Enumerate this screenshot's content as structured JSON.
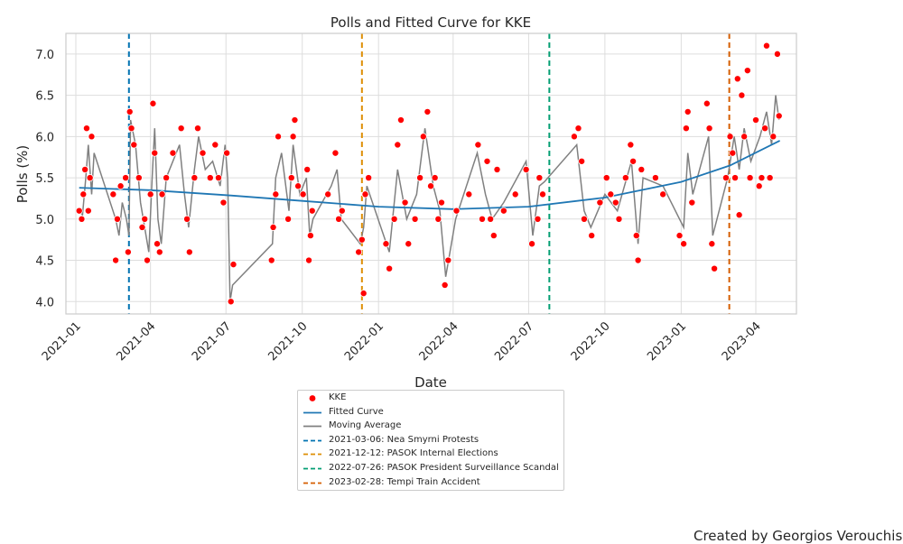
{
  "chart_data": {
    "type": "scatter",
    "title": "Polls and Fitted Curve for KKE",
    "xlabel": "Date",
    "ylabel": "Polls (%)",
    "x_range": [
      "2020-12-20",
      "2023-05-20"
    ],
    "ylim": [
      3.85,
      7.25
    ],
    "x_ticks": [
      "2021-01",
      "2021-04",
      "2021-07",
      "2021-10",
      "2022-01",
      "2022-04",
      "2022-07",
      "2022-10",
      "2023-01",
      "2023-04"
    ],
    "y_ticks": [
      4.0,
      4.5,
      5.0,
      5.5,
      6.0,
      6.5,
      7.0
    ],
    "grid": true,
    "legend_position": "below",
    "series": [
      {
        "name": "KKE",
        "style": "points",
        "color": "#ff0000",
        "points": [
          [
            "2021-01-05",
            5.1
          ],
          [
            "2021-01-08",
            5.0
          ],
          [
            "2021-01-10",
            5.3
          ],
          [
            "2021-01-12",
            5.6
          ],
          [
            "2021-01-14",
            6.1
          ],
          [
            "2021-01-16",
            5.1
          ],
          [
            "2021-01-18",
            5.5
          ],
          [
            "2021-01-20",
            6.0
          ],
          [
            "2021-02-15",
            5.3
          ],
          [
            "2021-02-18",
            4.5
          ],
          [
            "2021-02-20",
            5.0
          ],
          [
            "2021-02-24",
            5.4
          ],
          [
            "2021-03-02",
            5.5
          ],
          [
            "2021-03-05",
            4.6
          ],
          [
            "2021-03-07",
            6.3
          ],
          [
            "2021-03-09",
            6.1
          ],
          [
            "2021-03-12",
            5.9
          ],
          [
            "2021-03-18",
            5.5
          ],
          [
            "2021-03-22",
            4.9
          ],
          [
            "2021-03-25",
            5.0
          ],
          [
            "2021-03-28",
            4.5
          ],
          [
            "2021-04-01",
            5.3
          ],
          [
            "2021-04-04",
            6.4
          ],
          [
            "2021-04-06",
            5.8
          ],
          [
            "2021-04-09",
            4.7
          ],
          [
            "2021-04-12",
            4.6
          ],
          [
            "2021-04-15",
            5.3
          ],
          [
            "2021-04-20",
            5.5
          ],
          [
            "2021-04-28",
            5.8
          ],
          [
            "2021-05-08",
            6.1
          ],
          [
            "2021-05-15",
            5.0
          ],
          [
            "2021-05-18",
            4.6
          ],
          [
            "2021-05-24",
            5.5
          ],
          [
            "2021-05-28",
            6.1
          ],
          [
            "2021-06-03",
            5.8
          ],
          [
            "2021-06-12",
            5.5
          ],
          [
            "2021-06-18",
            5.9
          ],
          [
            "2021-06-22",
            5.5
          ],
          [
            "2021-06-28",
            5.2
          ],
          [
            "2021-07-02",
            5.8
          ],
          [
            "2021-07-07",
            4.0
          ],
          [
            "2021-07-10",
            4.45
          ],
          [
            "2021-08-25",
            4.5
          ],
          [
            "2021-08-27",
            4.9
          ],
          [
            "2021-08-30",
            5.3
          ],
          [
            "2021-09-02",
            6.0
          ],
          [
            "2021-09-14",
            5.0
          ],
          [
            "2021-09-18",
            5.5
          ],
          [
            "2021-09-20",
            6.0
          ],
          [
            "2021-09-22",
            6.2
          ],
          [
            "2021-09-26",
            5.4
          ],
          [
            "2021-10-02",
            5.3
          ],
          [
            "2021-10-07",
            5.6
          ],
          [
            "2021-10-09",
            4.5
          ],
          [
            "2021-10-11",
            4.8
          ],
          [
            "2021-10-13",
            5.1
          ],
          [
            "2021-11-01",
            5.3
          ],
          [
            "2021-11-10",
            5.8
          ],
          [
            "2021-11-14",
            5.0
          ],
          [
            "2021-11-18",
            5.1
          ],
          [
            "2021-12-08",
            4.6
          ],
          [
            "2021-12-12",
            4.75
          ],
          [
            "2021-12-14",
            4.1
          ],
          [
            "2021-12-16",
            5.3
          ],
          [
            "2021-12-20",
            5.5
          ],
          [
            "2022-01-10",
            4.7
          ],
          [
            "2022-01-14",
            4.4
          ],
          [
            "2022-01-20",
            5.0
          ],
          [
            "2022-01-24",
            5.9
          ],
          [
            "2022-01-28",
            6.2
          ],
          [
            "2022-02-02",
            5.2
          ],
          [
            "2022-02-06",
            4.7
          ],
          [
            "2022-02-14",
            5.0
          ],
          [
            "2022-02-20",
            5.5
          ],
          [
            "2022-02-24",
            6.0
          ],
          [
            "2022-03-01",
            6.3
          ],
          [
            "2022-03-05",
            5.4
          ],
          [
            "2022-03-10",
            5.5
          ],
          [
            "2022-03-14",
            5.0
          ],
          [
            "2022-03-18",
            5.2
          ],
          [
            "2022-03-22",
            4.2
          ],
          [
            "2022-03-26",
            4.5
          ],
          [
            "2022-04-05",
            5.1
          ],
          [
            "2022-04-20",
            5.3
          ],
          [
            "2022-05-01",
            5.9
          ],
          [
            "2022-05-06",
            5.0
          ],
          [
            "2022-05-12",
            5.7
          ],
          [
            "2022-05-16",
            5.0
          ],
          [
            "2022-05-20",
            4.8
          ],
          [
            "2022-05-24",
            5.6
          ],
          [
            "2022-06-01",
            5.1
          ],
          [
            "2022-06-15",
            5.3
          ],
          [
            "2022-06-28",
            5.6
          ],
          [
            "2022-07-05",
            4.7
          ],
          [
            "2022-07-12",
            5.0
          ],
          [
            "2022-07-14",
            5.5
          ],
          [
            "2022-07-18",
            5.3
          ],
          [
            "2022-08-25",
            6.0
          ],
          [
            "2022-08-30",
            6.1
          ],
          [
            "2022-09-03",
            5.7
          ],
          [
            "2022-09-06",
            5.0
          ],
          [
            "2022-09-15",
            4.8
          ],
          [
            "2022-09-25",
            5.2
          ],
          [
            "2022-10-03",
            5.5
          ],
          [
            "2022-10-08",
            5.3
          ],
          [
            "2022-10-14",
            5.2
          ],
          [
            "2022-10-18",
            5.0
          ],
          [
            "2022-10-26",
            5.5
          ],
          [
            "2022-11-01",
            5.9
          ],
          [
            "2022-11-04",
            5.7
          ],
          [
            "2022-11-08",
            4.8
          ],
          [
            "2022-11-10",
            4.5
          ],
          [
            "2022-11-14",
            5.6
          ],
          [
            "2022-12-01",
            5.5
          ],
          [
            "2022-12-10",
            5.3
          ],
          [
            "2022-12-30",
            4.8
          ],
          [
            "2023-01-04",
            4.7
          ],
          [
            "2023-01-07",
            6.1
          ],
          [
            "2023-01-09",
            6.3
          ],
          [
            "2023-01-14",
            5.2
          ],
          [
            "2023-02-01",
            6.4
          ],
          [
            "2023-02-04",
            6.1
          ],
          [
            "2023-02-07",
            4.7
          ],
          [
            "2023-02-10",
            4.4
          ],
          [
            "2023-02-24",
            5.5
          ],
          [
            "2023-03-01",
            6.0
          ],
          [
            "2023-03-04",
            5.8
          ],
          [
            "2023-03-07",
            5.5
          ],
          [
            "2023-03-10",
            6.7
          ],
          [
            "2023-03-12",
            5.05
          ],
          [
            "2023-03-15",
            6.5
          ],
          [
            "2023-03-18",
            6.0
          ],
          [
            "2023-03-22",
            6.8
          ],
          [
            "2023-03-25",
            5.5
          ],
          [
            "2023-04-01",
            6.2
          ],
          [
            "2023-04-05",
            5.4
          ],
          [
            "2023-04-08",
            5.5
          ],
          [
            "2023-04-12",
            6.1
          ],
          [
            "2023-04-14",
            7.1
          ],
          [
            "2023-04-18",
            5.5
          ],
          [
            "2023-04-22",
            6.0
          ],
          [
            "2023-04-27",
            7.0
          ],
          [
            "2023-04-29",
            6.25
          ]
        ]
      },
      {
        "name": "Fitted Curve",
        "style": "line",
        "color": "#1f77b4",
        "points": [
          [
            "2021-01-05",
            5.38
          ],
          [
            "2021-04-01",
            5.35
          ],
          [
            "2021-07-01",
            5.29
          ],
          [
            "2021-10-01",
            5.22
          ],
          [
            "2022-01-01",
            5.15
          ],
          [
            "2022-04-01",
            5.12
          ],
          [
            "2022-07-01",
            5.15
          ],
          [
            "2022-10-01",
            5.26
          ],
          [
            "2023-01-01",
            5.45
          ],
          [
            "2023-03-01",
            5.65
          ],
          [
            "2023-04-30",
            5.95
          ]
        ]
      },
      {
        "name": "Moving Average",
        "style": "line",
        "color": "#808080",
        "points": [
          [
            "2021-01-05",
            5.1
          ],
          [
            "2021-01-09",
            5.05
          ],
          [
            "2021-01-13",
            5.5
          ],
          [
            "2021-01-16",
            5.9
          ],
          [
            "2021-01-20",
            5.3
          ],
          [
            "2021-01-23",
            5.8
          ],
          [
            "2021-02-18",
            5.0
          ],
          [
            "2021-02-22",
            4.8
          ],
          [
            "2021-02-26",
            5.2
          ],
          [
            "2021-03-03",
            5.0
          ],
          [
            "2021-03-06",
            4.8
          ],
          [
            "2021-03-08",
            6.2
          ],
          [
            "2021-03-14",
            5.9
          ],
          [
            "2021-03-20",
            5.2
          ],
          [
            "2021-03-25",
            4.9
          ],
          [
            "2021-03-30",
            4.6
          ],
          [
            "2021-04-03",
            5.5
          ],
          [
            "2021-04-06",
            6.1
          ],
          [
            "2021-04-10",
            5.0
          ],
          [
            "2021-04-14",
            4.7
          ],
          [
            "2021-04-20",
            5.5
          ],
          [
            "2021-05-06",
            5.9
          ],
          [
            "2021-05-12",
            5.3
          ],
          [
            "2021-05-17",
            4.9
          ],
          [
            "2021-05-24",
            5.6
          ],
          [
            "2021-05-29",
            6.0
          ],
          [
            "2021-06-06",
            5.6
          ],
          [
            "2021-06-15",
            5.7
          ],
          [
            "2021-06-24",
            5.4
          ],
          [
            "2021-06-30",
            5.9
          ],
          [
            "2021-07-03",
            5.5
          ],
          [
            "2021-07-06",
            4.0
          ],
          [
            "2021-07-09",
            4.2
          ],
          [
            "2021-08-26",
            4.7
          ],
          [
            "2021-08-30",
            5.5
          ],
          [
            "2021-09-06",
            5.8
          ],
          [
            "2021-09-15",
            5.1
          ],
          [
            "2021-09-20",
            5.9
          ],
          [
            "2021-09-28",
            5.3
          ],
          [
            "2021-10-06",
            5.5
          ],
          [
            "2021-10-10",
            4.8
          ],
          [
            "2021-10-14",
            5.0
          ],
          [
            "2021-11-05",
            5.4
          ],
          [
            "2021-11-12",
            5.6
          ],
          [
            "2021-11-17",
            5.0
          ],
          [
            "2021-12-10",
            4.7
          ],
          [
            "2021-12-14",
            4.9
          ],
          [
            "2021-12-18",
            5.4
          ],
          [
            "2022-01-14",
            4.6
          ],
          [
            "2022-01-24",
            5.6
          ],
          [
            "2022-02-04",
            5.0
          ],
          [
            "2022-02-16",
            5.3
          ],
          [
            "2022-02-26",
            6.1
          ],
          [
            "2022-03-08",
            5.4
          ],
          [
            "2022-03-16",
            5.1
          ],
          [
            "2022-03-23",
            4.3
          ],
          [
            "2022-04-04",
            5.0
          ],
          [
            "2022-04-30",
            5.8
          ],
          [
            "2022-05-10",
            5.3
          ],
          [
            "2022-05-18",
            5.0
          ],
          [
            "2022-06-01",
            5.2
          ],
          [
            "2022-06-28",
            5.7
          ],
          [
            "2022-07-06",
            4.8
          ],
          [
            "2022-07-14",
            5.4
          ],
          [
            "2022-07-20",
            5.45
          ],
          [
            "2022-08-28",
            5.9
          ],
          [
            "2022-09-06",
            5.1
          ],
          [
            "2022-09-14",
            4.9
          ],
          [
            "2022-10-01",
            5.3
          ],
          [
            "2022-10-16",
            5.1
          ],
          [
            "2022-11-02",
            5.7
          ],
          [
            "2022-11-10",
            4.7
          ],
          [
            "2022-11-16",
            5.5
          ],
          [
            "2022-12-10",
            5.4
          ],
          [
            "2023-01-04",
            4.9
          ],
          [
            "2023-01-09",
            5.8
          ],
          [
            "2023-01-15",
            5.3
          ],
          [
            "2023-02-03",
            6.0
          ],
          [
            "2023-02-08",
            4.8
          ],
          [
            "2023-02-26",
            5.5
          ],
          [
            "2023-03-06",
            6.0
          ],
          [
            "2023-03-12",
            5.6
          ],
          [
            "2023-03-18",
            6.1
          ],
          [
            "2023-03-26",
            5.7
          ],
          [
            "2023-04-06",
            6.0
          ],
          [
            "2023-04-14",
            6.3
          ],
          [
            "2023-04-20",
            5.9
          ],
          [
            "2023-04-25",
            6.5
          ],
          [
            "2023-04-29",
            6.2
          ]
        ]
      }
    ],
    "events": [
      {
        "date": "2021-03-06",
        "label": "2021-03-06: Nea Smyrni Protests",
        "color": "#0173b2"
      },
      {
        "date": "2021-12-12",
        "label": "2021-12-12: PASOK Internal Elections",
        "color": "#de8f05"
      },
      {
        "date": "2022-07-26",
        "label": "2022-07-26: PASOK President Surveillance Scandal",
        "color": "#029e73"
      },
      {
        "date": "2023-02-28",
        "label": "2023-02-28: Tempi Train Accident",
        "color": "#d55e00"
      }
    ]
  },
  "credit": "Created by Georgios Verouchis"
}
